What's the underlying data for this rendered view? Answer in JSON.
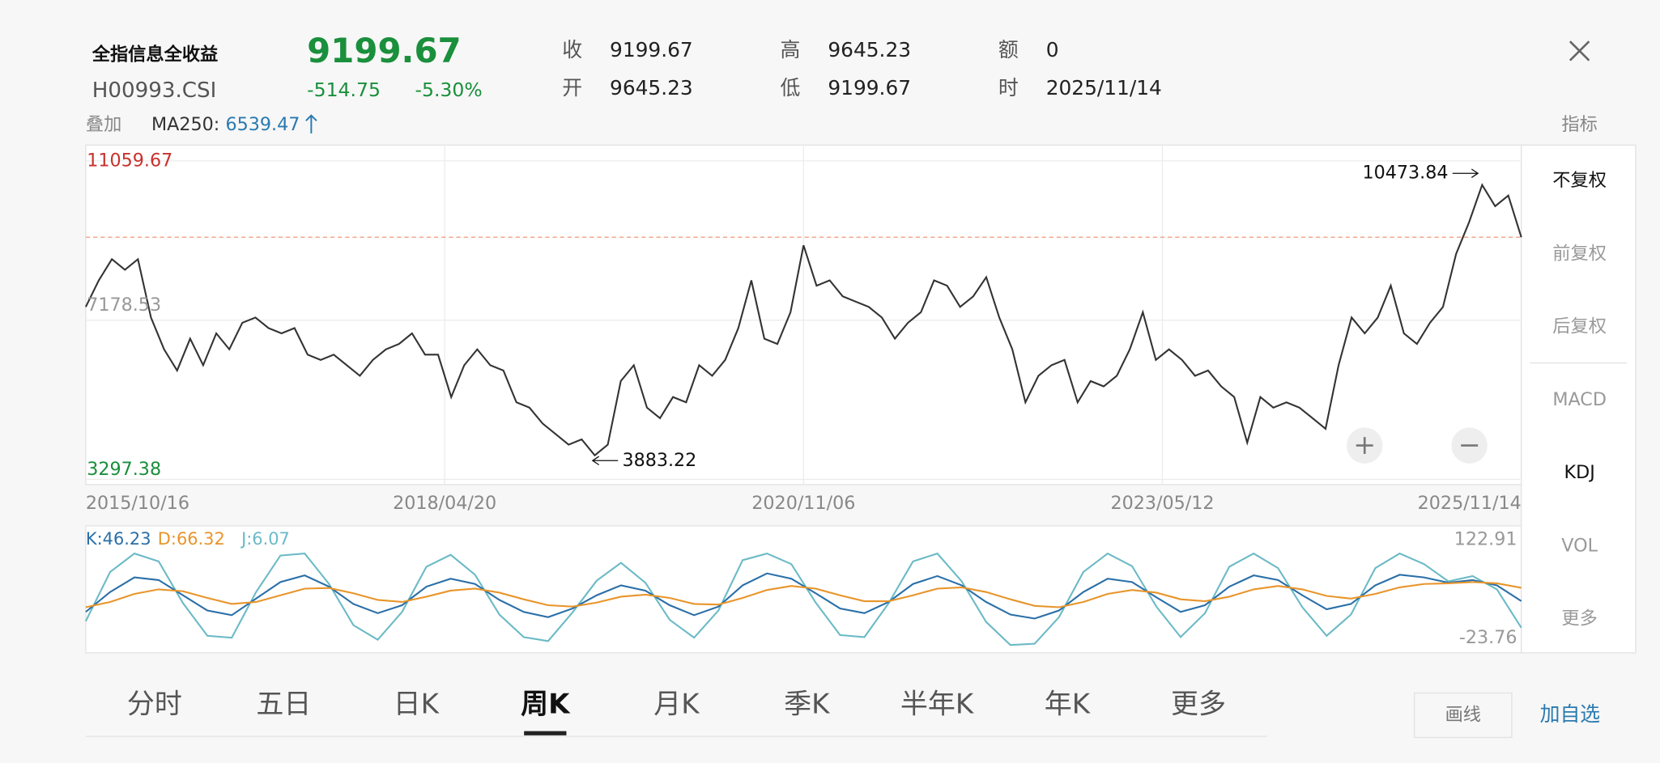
{
  "header": {
    "name": "全指信息全收益",
    "code": "H00993.CSI",
    "price": "9199.67",
    "change": "-514.75",
    "change_pct": "-5.30%",
    "fields": [
      {
        "label": "收",
        "value": "9199.67"
      },
      {
        "label": "开",
        "value": "9645.23"
      },
      {
        "label": "高",
        "value": "9645.23"
      },
      {
        "label": "低",
        "value": "9199.67"
      },
      {
        "label": "额",
        "value": "0"
      },
      {
        "label": "时",
        "value": "2025/11/14"
      }
    ]
  },
  "overlay": {
    "label": "叠加",
    "ma_name": "MA250:",
    "ma_value": "6539.47"
  },
  "side_menu": {
    "title": "指标",
    "items": [
      "不复权",
      "前复权",
      "后复权",
      "MACD",
      "KDJ",
      "VOL",
      "更多"
    ]
  },
  "price_chart": {
    "type": "line",
    "ylim": [
      3297.38,
      11059.67
    ],
    "yticks": [
      3297.38,
      7178.53,
      11059.67
    ],
    "x_labels": [
      "2015/10/16",
      "2018/04/20",
      "2020/11/06",
      "2023/05/12",
      "2025/11/14"
    ],
    "color": "#333333",
    "last_close": 9199.67,
    "max_label": 10473.84,
    "min_label": 3883.22,
    "values": [
      7502,
      8148,
      8665,
      8406,
      8665,
      7243,
      6468,
      5951,
      6726,
      6080,
      6856,
      6468,
      7114,
      7243,
      6985,
      6856,
      6985,
      6339,
      6209,
      6339,
      6080,
      5822,
      6209,
      6468,
      6597,
      6856,
      6339,
      6339,
      5305,
      6080,
      6468,
      6080,
      5951,
      5176,
      5046,
      4659,
      4400,
      4142,
      4271,
      3883.22,
      4142,
      5692,
      6080,
      5046,
      4788,
      5305,
      5176,
      6080,
      5822,
      6209,
      6985,
      8148,
      6726,
      6597,
      7372,
      9001,
      8019,
      8148,
      7760,
      7631,
      7502,
      7243,
      6726,
      7114,
      7372,
      8148,
      8019,
      7502,
      7760,
      8225,
      7243,
      6468,
      5176,
      5822,
      6080,
      6209,
      5176,
      5692,
      5563,
      5822,
      6468,
      7372,
      6209,
      6468,
      6209,
      5822,
      5951,
      5563,
      5305,
      4193,
      5305,
      5046,
      5176,
      5046,
      4788,
      4529,
      6080,
      7243,
      6856,
      7243,
      8019,
      6856,
      6597,
      7114,
      7502,
      8794,
      9569,
      10473.84,
      9957,
      10216,
      9199.67
    ]
  },
  "kdj_chart": {
    "type": "line",
    "ylim": [
      -23.76,
      122.91
    ],
    "yticks": [
      -23.76,
      122.91
    ],
    "legend": [
      "K:46.23",
      "D:66.32",
      "J:6.07"
    ],
    "series": [
      {
        "name": "K",
        "color": "#2a6fa8",
        "values": [
          30,
          60,
          82,
          78,
          55,
          32,
          25,
          50,
          75,
          85,
          68,
          42,
          28,
          40,
          68,
          80,
          72,
          48,
          30,
          22,
          35,
          55,
          70,
          62,
          40,
          25,
          38,
          70,
          88,
          80,
          58,
          35,
          28,
          45,
          72,
          84,
          70,
          45,
          26,
          20,
          32,
          60,
          80,
          75,
          52,
          30,
          40,
          68,
          85,
          78,
          55,
          34,
          42,
          70,
          86,
          82,
          74,
          78,
          70,
          46.23
        ]
      },
      {
        "name": "D",
        "color": "#e8952b",
        "values": [
          37,
          45,
          57,
          64,
          61,
          51,
          42,
          45,
          55,
          65,
          66,
          58,
          48,
          45,
          53,
          62,
          65,
          59,
          49,
          40,
          38,
          44,
          53,
          56,
          51,
          42,
          41,
          51,
          63,
          69,
          65,
          55,
          46,
          46,
          55,
          65,
          67,
          60,
          49,
          39,
          37,
          45,
          57,
          63,
          59,
          49,
          46,
          53,
          64,
          69,
          64,
          54,
          50,
          57,
          67,
          72,
          73,
          75,
          73,
          66.32
        ]
      },
      {
        "name": "J",
        "color": "#6bbac6",
        "values": [
          16,
          90,
          118,
          106,
          43,
          -6,
          -9,
          60,
          115,
          118,
          72,
          10,
          -12,
          30,
          98,
          116,
          86,
          26,
          -8,
          -14,
          29,
          77,
          104,
          74,
          18,
          -9,
          32,
          108,
          118,
          102,
          44,
          -5,
          -8,
          43,
          106,
          118,
          76,
          15,
          -20,
          -18,
          22,
          90,
          118,
          99,
          38,
          -8,
          28,
          98,
          118,
          96,
          37,
          -6,
          26,
          96,
          118,
          102,
          76,
          84,
          64,
          6.07
        ]
      }
    ]
  },
  "tabs": {
    "items": [
      "分时",
      "五日",
      "日K",
      "周K",
      "月K",
      "季K",
      "半年K",
      "年K",
      "更多"
    ],
    "active": 3
  },
  "buttons": {
    "draw": "画线",
    "add": "加自选"
  }
}
